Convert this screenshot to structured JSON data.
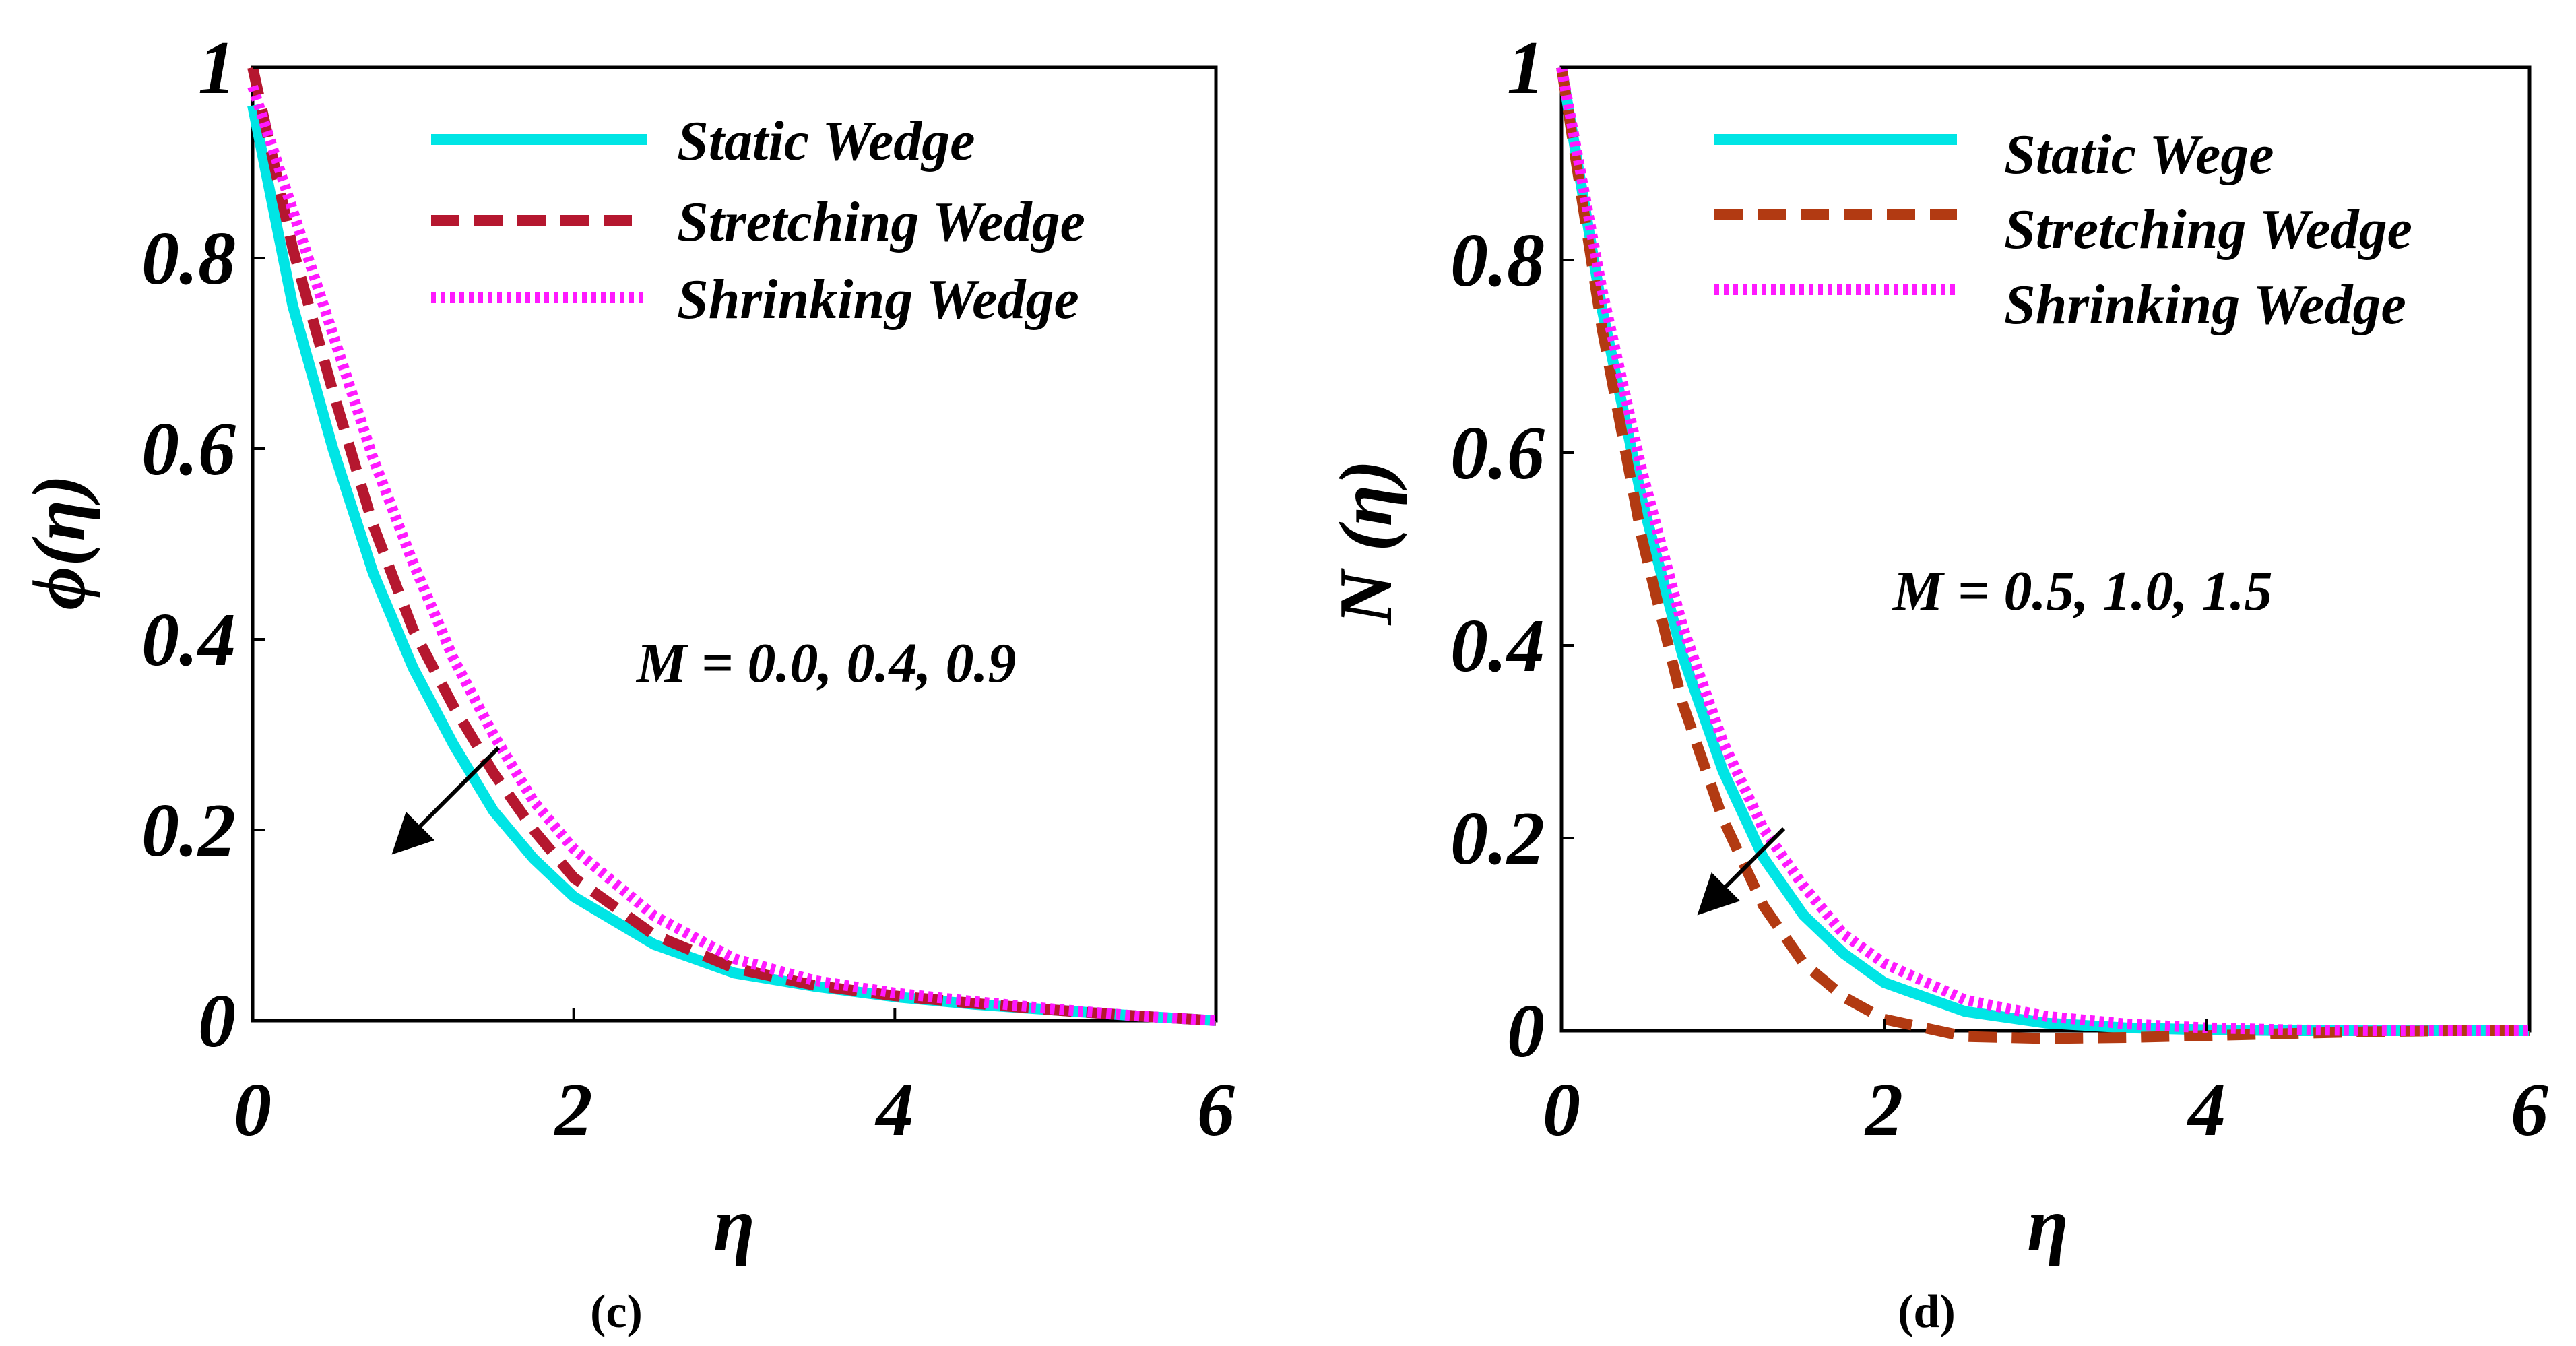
{
  "colors": {
    "static": "#00e5e5",
    "stretching_c": "#b5172f",
    "stretching_d": "#b23a12",
    "shrinking": "#ff19ff"
  },
  "chart_data": [
    {
      "type": "line",
      "panel_label": "(c)",
      "xlabel": "η",
      "ylabel": "ϕ(η)",
      "xlim": [
        0,
        6
      ],
      "ylim": [
        0,
        1
      ],
      "x_ticks": [
        "0",
        "2",
        "4",
        "6"
      ],
      "y_ticks": [
        "0",
        "0.2",
        "0.4",
        "0.6",
        "0.8",
        "1"
      ],
      "annotation": "M = 0.0, 0.4, 0.9",
      "legend_position": "top-right",
      "legend": [
        "Static Wedge",
        "Stretching Wedge",
        "Shrinking Wedge"
      ],
      "x": [
        0,
        0.25,
        0.5,
        0.75,
        1,
        1.25,
        1.5,
        1.75,
        2,
        2.5,
        3,
        3.5,
        4,
        4.5,
        5,
        5.5,
        6
      ],
      "series": [
        {
          "name": "Static Wedge",
          "style": "solid",
          "color": "static",
          "values": [
            0.96,
            0.75,
            0.6,
            0.47,
            0.37,
            0.29,
            0.22,
            0.17,
            0.13,
            0.08,
            0.05,
            0.036,
            0.025,
            0.017,
            0.011,
            0.005,
            0.0
          ]
        },
        {
          "name": "Stretching Wedge",
          "style": "dashed",
          "color": "stretching_c",
          "values": [
            1.0,
            0.81,
            0.66,
            0.52,
            0.41,
            0.33,
            0.26,
            0.2,
            0.15,
            0.09,
            0.055,
            0.037,
            0.026,
            0.018,
            0.011,
            0.005,
            0.0
          ]
        },
        {
          "name": "Shrinking Wedge",
          "style": "dotted",
          "color": "shrinking",
          "values": [
            0.98,
            0.85,
            0.72,
            0.59,
            0.48,
            0.38,
            0.3,
            0.23,
            0.18,
            0.11,
            0.065,
            0.042,
            0.029,
            0.02,
            0.012,
            0.005,
            0.0
          ]
        }
      ]
    },
    {
      "type": "line",
      "panel_label": "(d)",
      "xlabel": "η",
      "ylabel": "N (η)",
      "xlim": [
        0,
        6
      ],
      "ylim": [
        0,
        1
      ],
      "x_ticks": [
        "0",
        "2",
        "4",
        "6"
      ],
      "y_ticks": [
        "0",
        "0.2",
        "0.4",
        "0.6",
        "0.8",
        "1"
      ],
      "annotation": "M = 0.5, 1.0, 1.5",
      "legend_position": "top-right",
      "legend": [
        "Static Wege",
        "Stretching Wedge",
        "Shrinking Wedge"
      ],
      "x": [
        0,
        0.25,
        0.5,
        0.75,
        1,
        1.25,
        1.5,
        1.75,
        2,
        2.5,
        3,
        3.5,
        4,
        4.5,
        5,
        5.5,
        6
      ],
      "series": [
        {
          "name": "Static Wege",
          "style": "solid",
          "color": "static",
          "values": [
            1.0,
            0.75,
            0.55,
            0.39,
            0.27,
            0.18,
            0.12,
            0.08,
            0.05,
            0.02,
            0.008,
            0.003,
            0.001,
            0.0,
            0.0,
            0.0,
            0.0
          ]
        },
        {
          "name": "Stretching Wedge",
          "style": "dashed",
          "color": "stretching_d",
          "values": [
            1.0,
            0.73,
            0.51,
            0.34,
            0.22,
            0.13,
            0.07,
            0.035,
            0.012,
            -0.006,
            -0.008,
            -0.007,
            -0.005,
            -0.003,
            -0.001,
            0.0,
            0.0
          ]
        },
        {
          "name": "Shrinking Wedge",
          "style": "dotted",
          "color": "shrinking",
          "values": [
            1.0,
            0.77,
            0.58,
            0.42,
            0.3,
            0.21,
            0.15,
            0.1,
            0.07,
            0.032,
            0.015,
            0.007,
            0.003,
            0.001,
            0.0,
            0.0,
            0.0
          ]
        }
      ]
    }
  ]
}
